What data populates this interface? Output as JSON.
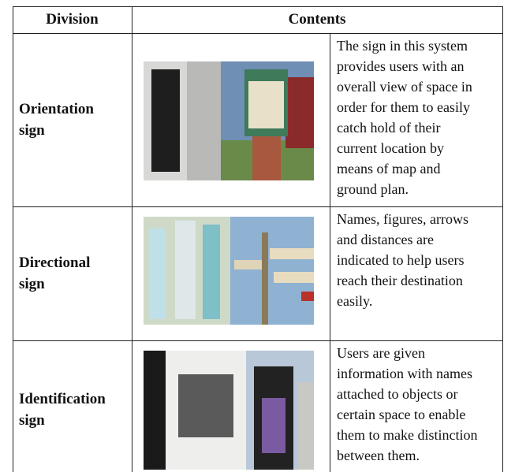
{
  "table": {
    "header": [
      "Division",
      "Contents"
    ],
    "rows": [
      {
        "division": [
          "Orientation",
          "sign"
        ],
        "contents": [
          "The sign in this system",
          "provides users with an",
          "overall view of space in",
          "order for them to easily",
          "catch hold of their",
          "current location by",
          "means of map and",
          "ground plan."
        ]
      },
      {
        "division": [
          "Directional",
          "sign"
        ],
        "contents": [
          "Names, figures, arrows",
          "and distances are",
          "indicated to help users",
          "reach their destination",
          "easily."
        ]
      },
      {
        "division": [
          "Identification",
          "sign"
        ],
        "contents": [
          "Users are given",
          "information with names",
          "attached to objects or",
          "certain space to enable",
          "them to make distinction",
          "between them."
        ]
      }
    ]
  }
}
